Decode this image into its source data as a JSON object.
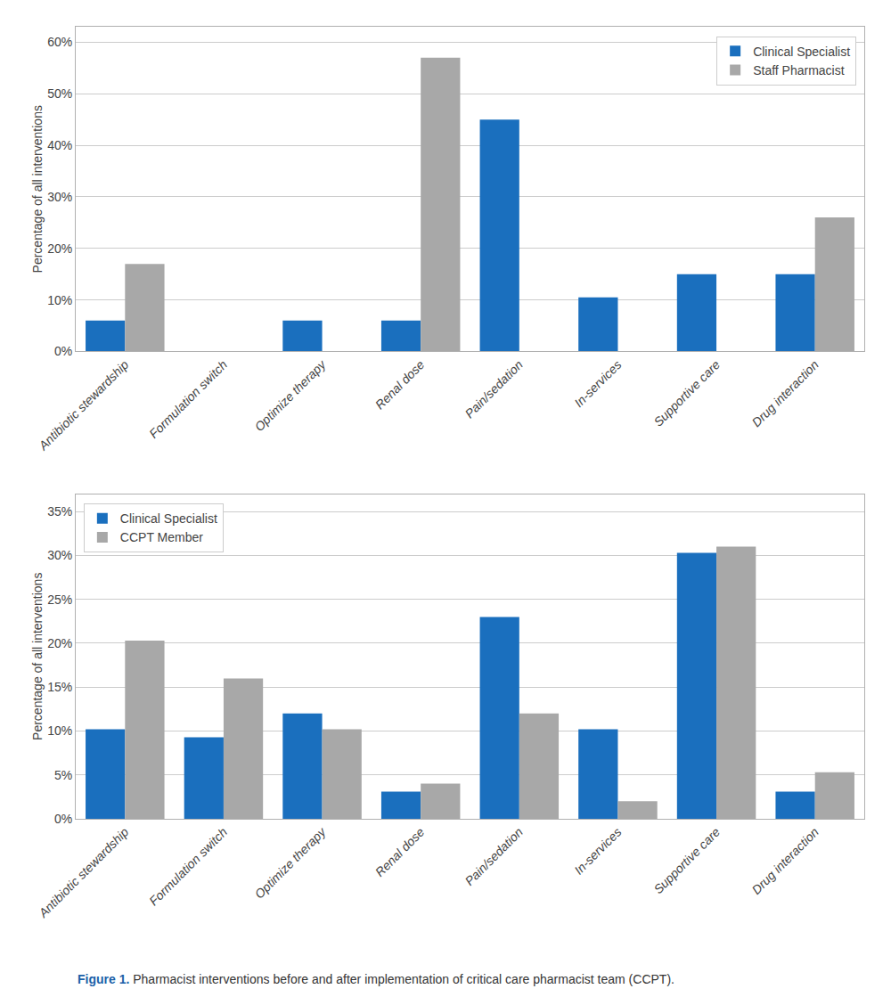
{
  "chart_data": [
    {
      "type": "bar",
      "ylabel": "Percentage of all interventions",
      "categories": [
        "Antibiotic stewardship",
        "Formulation switch",
        "Optimize therapy",
        "Renal dose",
        "Pain/sedation",
        "In-services",
        "Supportive care",
        "Drug interaction"
      ],
      "series": [
        {
          "name": "Clinical Specialist",
          "color": "#1a6fbe",
          "values": [
            6,
            0,
            6,
            6,
            45,
            10.5,
            15,
            15
          ]
        },
        {
          "name": "Staff Pharmacist",
          "color": "#a8a8a8",
          "values": [
            17,
            0,
            0,
            57,
            0,
            0,
            0,
            26
          ]
        }
      ],
      "ylim": [
        0,
        63
      ],
      "yticks": [
        {
          "value": 0,
          "label": "0%"
        },
        {
          "value": 10,
          "label": "10%"
        },
        {
          "value": 20,
          "label": "20%"
        },
        {
          "value": 30,
          "label": "30%"
        },
        {
          "value": 40,
          "label": "40%"
        },
        {
          "value": 50,
          "label": "50%"
        },
        {
          "value": 60,
          "label": "60%"
        }
      ],
      "grid": true,
      "legend": "upper right"
    },
    {
      "type": "bar",
      "ylabel": "Percentage of all interventions",
      "categories": [
        "Antibiotic stewardship",
        "Formulation switch",
        "Optimize therapy",
        "Renal dose",
        "Pain/sedation",
        "In-services",
        "Supportive care",
        "Drug interaction"
      ],
      "series": [
        {
          "name": "Clinical Specialist",
          "color": "#1a6fbe",
          "values": [
            10.2,
            9.3,
            12,
            3.1,
            23,
            10.2,
            30.3,
            3.1
          ]
        },
        {
          "name": "CCPT Member",
          "color": "#a8a8a8",
          "values": [
            20.3,
            16,
            10.2,
            4,
            12,
            2,
            31,
            5.3
          ]
        }
      ],
      "ylim": [
        0,
        37
      ],
      "yticks": [
        {
          "value": 0,
          "label": "0%"
        },
        {
          "value": 5,
          "label": "5%"
        },
        {
          "value": 10,
          "label": "10%"
        },
        {
          "value": 15,
          "label": "15%"
        },
        {
          "value": 20,
          "label": "20%"
        },
        {
          "value": 25,
          "label": "25%"
        },
        {
          "value": 30,
          "label": "30%"
        },
        {
          "value": 35,
          "label": "35%"
        }
      ],
      "grid": true,
      "legend": "upper left",
      "annotations": [
        {
          "text": "Figure 1.",
          "color": "#1a5fa8"
        },
        {
          "text": " Pharmacist interventions before and after implementation of critical care pharmacist team (CCPT).",
          "color": "#333333"
        }
      ]
    }
  ]
}
